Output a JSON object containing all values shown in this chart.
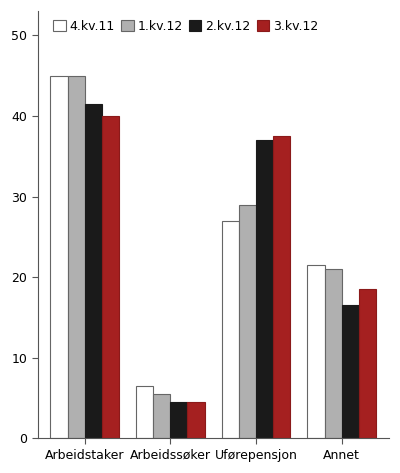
{
  "categories": [
    "Arbeidstaker",
    "Arbeidssøker",
    "Uførepensjon",
    "Annet"
  ],
  "series": {
    "4.kv.11": [
      45,
      6.5,
      27,
      21.5
    ],
    "1.kv.12": [
      45,
      5.5,
      29,
      21
    ],
    "2.kv.12": [
      41.5,
      4.5,
      37,
      16.5
    ],
    "3.kv.12": [
      40,
      4.5,
      37.5,
      18.5
    ]
  },
  "series_order": [
    "4.kv.11",
    "1.kv.12",
    "2.kv.12",
    "3.kv.12"
  ],
  "colors": [
    "#ffffff",
    "#b0b0b0",
    "#1a1a1a",
    "#a52020"
  ],
  "edge_colors": [
    "#666666",
    "#666666",
    "#1a1a1a",
    "#8b1a1a"
  ],
  "ylim": [
    0,
    53
  ],
  "yticks": [
    0,
    10,
    20,
    30,
    40,
    50
  ],
  "bar_width": 0.2,
  "legend_labels": [
    "4.kv.11",
    "1.kv.12",
    "2.kv.12",
    "3.kv.12"
  ],
  "background_color": "#ffffff",
  "tick_fontsize": 9,
  "legend_fontsize": 9
}
